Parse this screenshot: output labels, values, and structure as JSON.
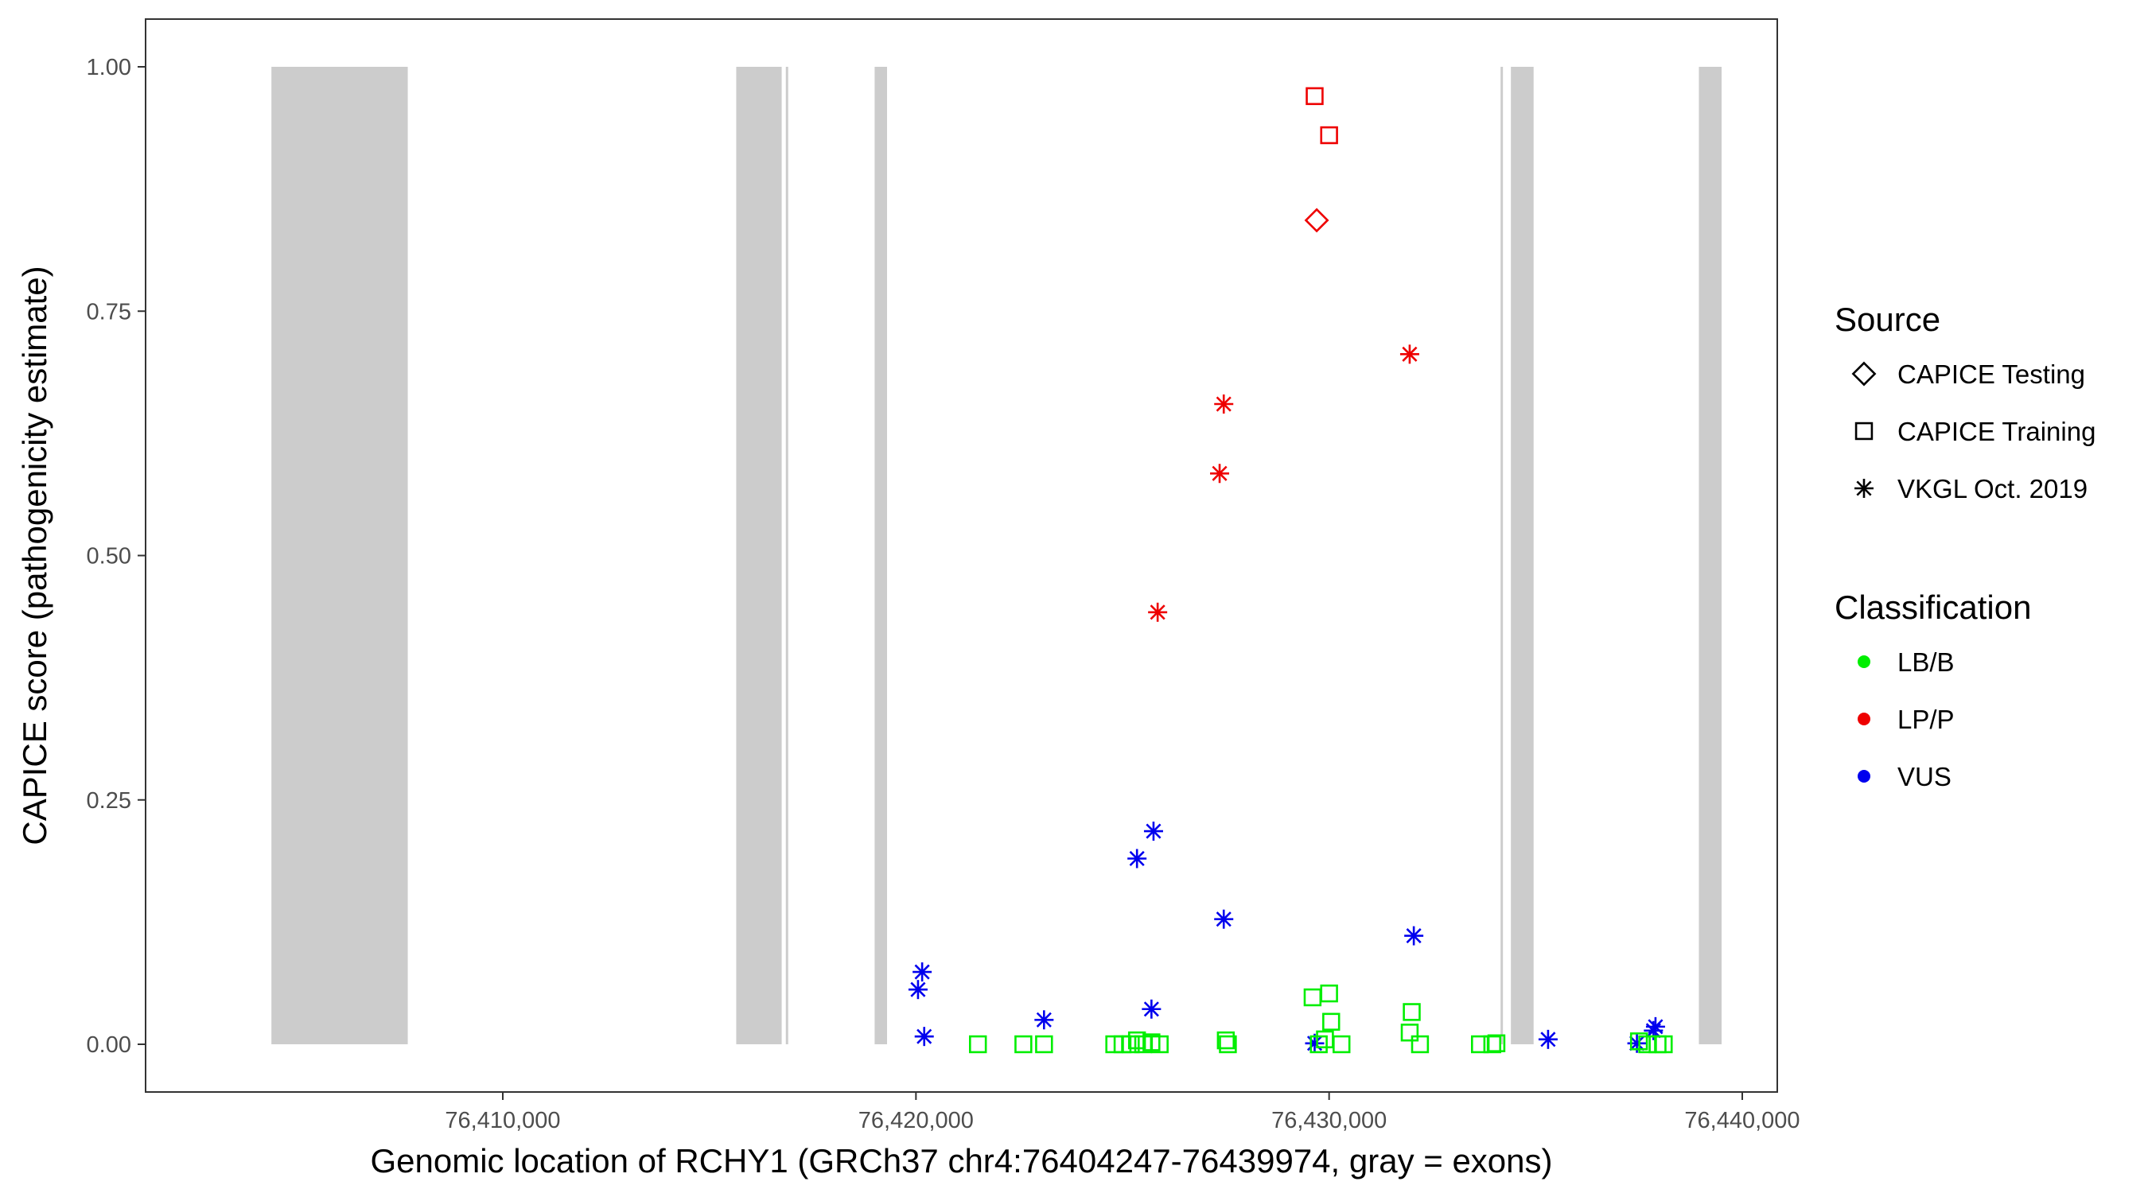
{
  "chart_data": {
    "type": "scatter",
    "xlabel": "Genomic location of RCHY1 (GRCh37 chr4:76404247-76439974, gray = exons)",
    "ylabel": "CAPICE score (pathogenicity estimate)",
    "xlim": [
      76404247,
      76439974
    ],
    "ylim": [
      -0.05,
      1.05
    ],
    "x_ticks": [
      76410000,
      76420000,
      76430000,
      76440000
    ],
    "x_tick_labels": [
      "76,410,000",
      "76,420,000",
      "76,430,000",
      "76,440,000"
    ],
    "y_ticks": [
      0.0,
      0.25,
      0.5,
      0.75,
      1.0
    ],
    "y_tick_labels": [
      "0.00",
      "0.25",
      "0.50",
      "0.75",
      "1.00"
    ],
    "grid": false,
    "exons": [
      [
        76404400,
        76407700
      ],
      [
        76415650,
        76416750
      ],
      [
        76416850,
        76416900
      ],
      [
        76419000,
        76419300
      ],
      [
        76434150,
        76434200
      ],
      [
        76434400,
        76434950
      ],
      [
        76438950,
        76439500
      ]
    ],
    "legend": {
      "position": "right",
      "source": {
        "title": "Source",
        "items": [
          {
            "label": "CAPICE Testing",
            "shape": "diamond"
          },
          {
            "label": "CAPICE Training",
            "shape": "square"
          },
          {
            "label": "VKGL Oct. 2019",
            "shape": "asterisk"
          }
        ]
      },
      "classification": {
        "title": "Classification",
        "items": [
          {
            "label": "LB/B",
            "color": "#00ee00"
          },
          {
            "label": "LP/P",
            "color": "#ee0000"
          },
          {
            "label": "VUS",
            "color": "#0000ee"
          }
        ]
      }
    },
    "colors": {
      "LB/B": "#00ee00",
      "LP/P": "#ee0000",
      "VUS": "#0000ee"
    },
    "points": [
      {
        "x": 76429650,
        "y": 0.97,
        "source": "CAPICE Training",
        "class": "LP/P"
      },
      {
        "x": 76430000,
        "y": 0.93,
        "source": "CAPICE Training",
        "class": "LP/P"
      },
      {
        "x": 76429700,
        "y": 0.843,
        "source": "CAPICE Testing",
        "class": "LP/P"
      },
      {
        "x": 76431950,
        "y": 0.706,
        "source": "VKGL Oct. 2019",
        "class": "LP/P"
      },
      {
        "x": 76427450,
        "y": 0.655,
        "source": "VKGL Oct. 2019",
        "class": "LP/P"
      },
      {
        "x": 76427350,
        "y": 0.584,
        "source": "VKGL Oct. 2019",
        "class": "LP/P"
      },
      {
        "x": 76425850,
        "y": 0.442,
        "source": "VKGL Oct. 2019",
        "class": "LP/P"
      },
      {
        "x": 76425750,
        "y": 0.218,
        "source": "VKGL Oct. 2019",
        "class": "VUS"
      },
      {
        "x": 76425350,
        "y": 0.19,
        "source": "VKGL Oct. 2019",
        "class": "VUS"
      },
      {
        "x": 76427450,
        "y": 0.128,
        "source": "VKGL Oct. 2019",
        "class": "VUS"
      },
      {
        "x": 76432050,
        "y": 0.111,
        "source": "VKGL Oct. 2019",
        "class": "VUS"
      },
      {
        "x": 76420150,
        "y": 0.074,
        "source": "VKGL Oct. 2019",
        "class": "VUS"
      },
      {
        "x": 76420050,
        "y": 0.056,
        "source": "VKGL Oct. 2019",
        "class": "VUS"
      },
      {
        "x": 76425700,
        "y": 0.036,
        "source": "VKGL Oct. 2019",
        "class": "VUS"
      },
      {
        "x": 76423100,
        "y": 0.025,
        "source": "VKGL Oct. 2019",
        "class": "VUS"
      },
      {
        "x": 76420200,
        "y": 0.008,
        "source": "VKGL Oct. 2019",
        "class": "VUS"
      },
      {
        "x": 76429650,
        "y": 0.001,
        "source": "VKGL Oct. 2019",
        "class": "VUS"
      },
      {
        "x": 76435300,
        "y": 0.005,
        "source": "VKGL Oct. 2019",
        "class": "VUS"
      },
      {
        "x": 76437450,
        "y": 0.001,
        "source": "VKGL Oct. 2019",
        "class": "VUS"
      },
      {
        "x": 76437900,
        "y": 0.018,
        "source": "VKGL Oct. 2019",
        "class": "VUS"
      },
      {
        "x": 76437850,
        "y": 0.014,
        "source": "VKGL Oct. 2019",
        "class": "VUS"
      },
      {
        "x": 76421500,
        "y": 0.0,
        "source": "CAPICE Training",
        "class": "LB/B"
      },
      {
        "x": 76422600,
        "y": 0.0,
        "source": "CAPICE Training",
        "class": "LB/B"
      },
      {
        "x": 76423100,
        "y": 0.0,
        "source": "CAPICE Training",
        "class": "LB/B"
      },
      {
        "x": 76424800,
        "y": 0.0,
        "source": "CAPICE Training",
        "class": "LB/B"
      },
      {
        "x": 76425000,
        "y": 0.0,
        "source": "CAPICE Training",
        "class": "LB/B"
      },
      {
        "x": 76425200,
        "y": 0.0,
        "source": "CAPICE Training",
        "class": "LB/B"
      },
      {
        "x": 76425350,
        "y": 0.004,
        "source": "CAPICE Training",
        "class": "LB/B"
      },
      {
        "x": 76425500,
        "y": 0.0,
        "source": "CAPICE Training",
        "class": "LB/B"
      },
      {
        "x": 76425700,
        "y": 0.002,
        "source": "CAPICE Training",
        "class": "LB/B"
      },
      {
        "x": 76425900,
        "y": 0.0,
        "source": "CAPICE Training",
        "class": "LB/B"
      },
      {
        "x": 76427500,
        "y": 0.004,
        "source": "CAPICE Training",
        "class": "LB/B"
      },
      {
        "x": 76427550,
        "y": 0.0,
        "source": "CAPICE Training",
        "class": "LB/B"
      },
      {
        "x": 76429600,
        "y": 0.048,
        "source": "CAPICE Training",
        "class": "LB/B"
      },
      {
        "x": 76430000,
        "y": 0.052,
        "source": "CAPICE Training",
        "class": "LB/B"
      },
      {
        "x": 76430050,
        "y": 0.023,
        "source": "CAPICE Training",
        "class": "LB/B"
      },
      {
        "x": 76429900,
        "y": 0.005,
        "source": "CAPICE Training",
        "class": "LB/B"
      },
      {
        "x": 76429750,
        "y": 0.0,
        "source": "CAPICE Training",
        "class": "LB/B"
      },
      {
        "x": 76430300,
        "y": 0.0,
        "source": "CAPICE Training",
        "class": "LB/B"
      },
      {
        "x": 76432000,
        "y": 0.033,
        "source": "CAPICE Training",
        "class": "LB/B"
      },
      {
        "x": 76431950,
        "y": 0.012,
        "source": "CAPICE Training",
        "class": "LB/B"
      },
      {
        "x": 76432200,
        "y": 0.0,
        "source": "CAPICE Training",
        "class": "LB/B"
      },
      {
        "x": 76433650,
        "y": 0.0,
        "source": "CAPICE Training",
        "class": "LB/B"
      },
      {
        "x": 76433950,
        "y": 0.0,
        "source": "CAPICE Training",
        "class": "LB/B"
      },
      {
        "x": 76434050,
        "y": 0.001,
        "source": "CAPICE Training",
        "class": "LB/B"
      },
      {
        "x": 76437500,
        "y": 0.003,
        "source": "CAPICE Training",
        "class": "LB/B"
      },
      {
        "x": 76437700,
        "y": 0.0,
        "source": "CAPICE Training",
        "class": "LB/B"
      },
      {
        "x": 76437950,
        "y": 0.0,
        "source": "CAPICE Training",
        "class": "LB/B"
      },
      {
        "x": 76438100,
        "y": 0.0,
        "source": "CAPICE Training",
        "class": "LB/B"
      }
    ]
  }
}
